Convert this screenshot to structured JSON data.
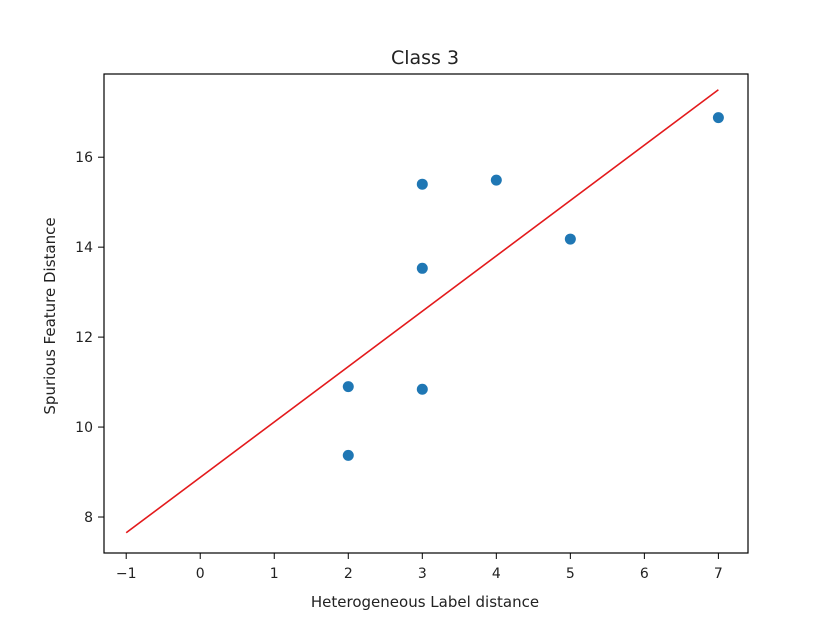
{
  "chart_data": {
    "type": "scatter",
    "title": "Class 3",
    "xlabel": "Heterogeneous Label distance",
    "ylabel": "Spurious Feature Distance",
    "xlim": [
      -1.3,
      7.4
    ],
    "ylim": [
      7.2,
      17.85
    ],
    "xticks": [
      -1,
      0,
      1,
      2,
      3,
      4,
      5,
      6,
      7
    ],
    "yticks": [
      8,
      10,
      12,
      14,
      16
    ],
    "grid": false,
    "legend": "none",
    "series": [
      {
        "kind": "scatter",
        "color": "#1f77b4",
        "points": [
          {
            "x": 2,
            "y": 10.9
          },
          {
            "x": 2,
            "y": 9.37
          },
          {
            "x": 3,
            "y": 15.4
          },
          {
            "x": 3,
            "y": 13.53
          },
          {
            "x": 3,
            "y": 10.84
          },
          {
            "x": 4,
            "y": 15.49
          },
          {
            "x": 5,
            "y": 14.18
          },
          {
            "x": 7,
            "y": 16.88
          }
        ]
      },
      {
        "kind": "line",
        "color": "#e31a1c",
        "points": [
          {
            "x": -1,
            "y": 7.65
          },
          {
            "x": 7,
            "y": 17.5
          }
        ]
      }
    ]
  }
}
